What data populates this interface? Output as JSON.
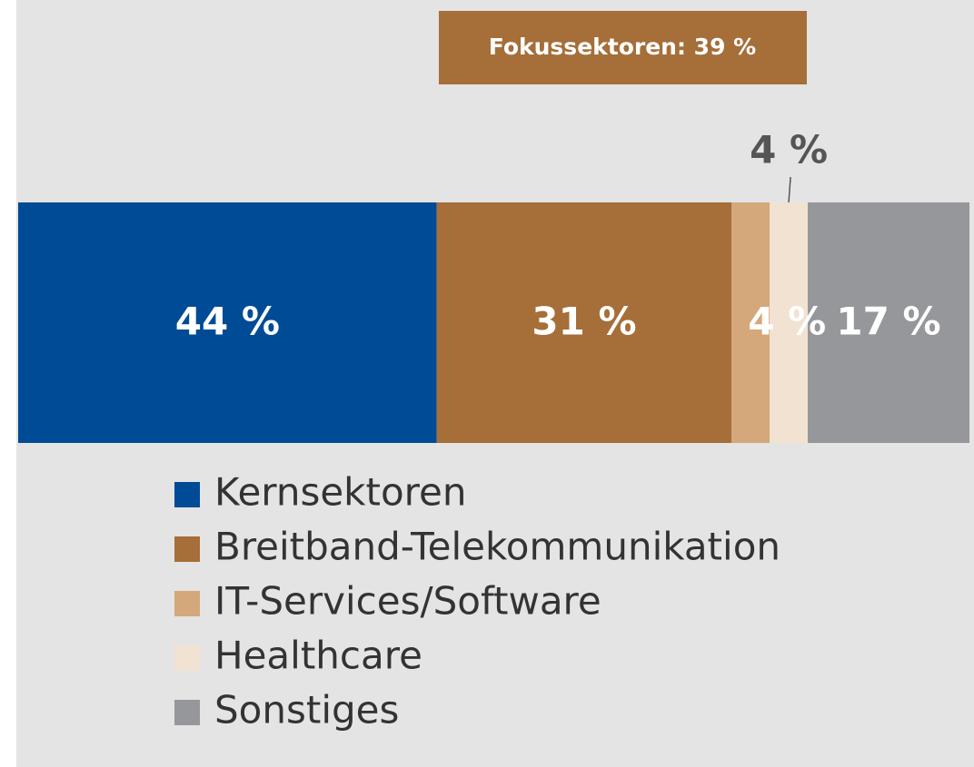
{
  "chart_data": {
    "type": "stacked-bar-horizontal",
    "annotation": "Fokussektoren: 39 %",
    "series": [
      {
        "name": "Kernsektoren",
        "color": "#004b96",
        "values": [
          44
        ],
        "value_labels": [
          "44 %"
        ]
      },
      {
        "name": "Breitband-Telekommunikation",
        "color": "#a66e38",
        "values": [
          31
        ],
        "value_labels": [
          "31 %"
        ]
      },
      {
        "name": "IT-Services/Software",
        "color": "#d4a87a",
        "values": [
          4
        ],
        "value_labels": [
          "4 %"
        ]
      },
      {
        "name": "Healthcare",
        "color": "#f2e2d2",
        "values": [
          4
        ],
        "value_labels": [
          "4 %"
        ]
      },
      {
        "name": "Sonstiges",
        "color": "#96979b",
        "values": [
          17
        ],
        "value_labels": [
          "17 %"
        ]
      }
    ]
  }
}
